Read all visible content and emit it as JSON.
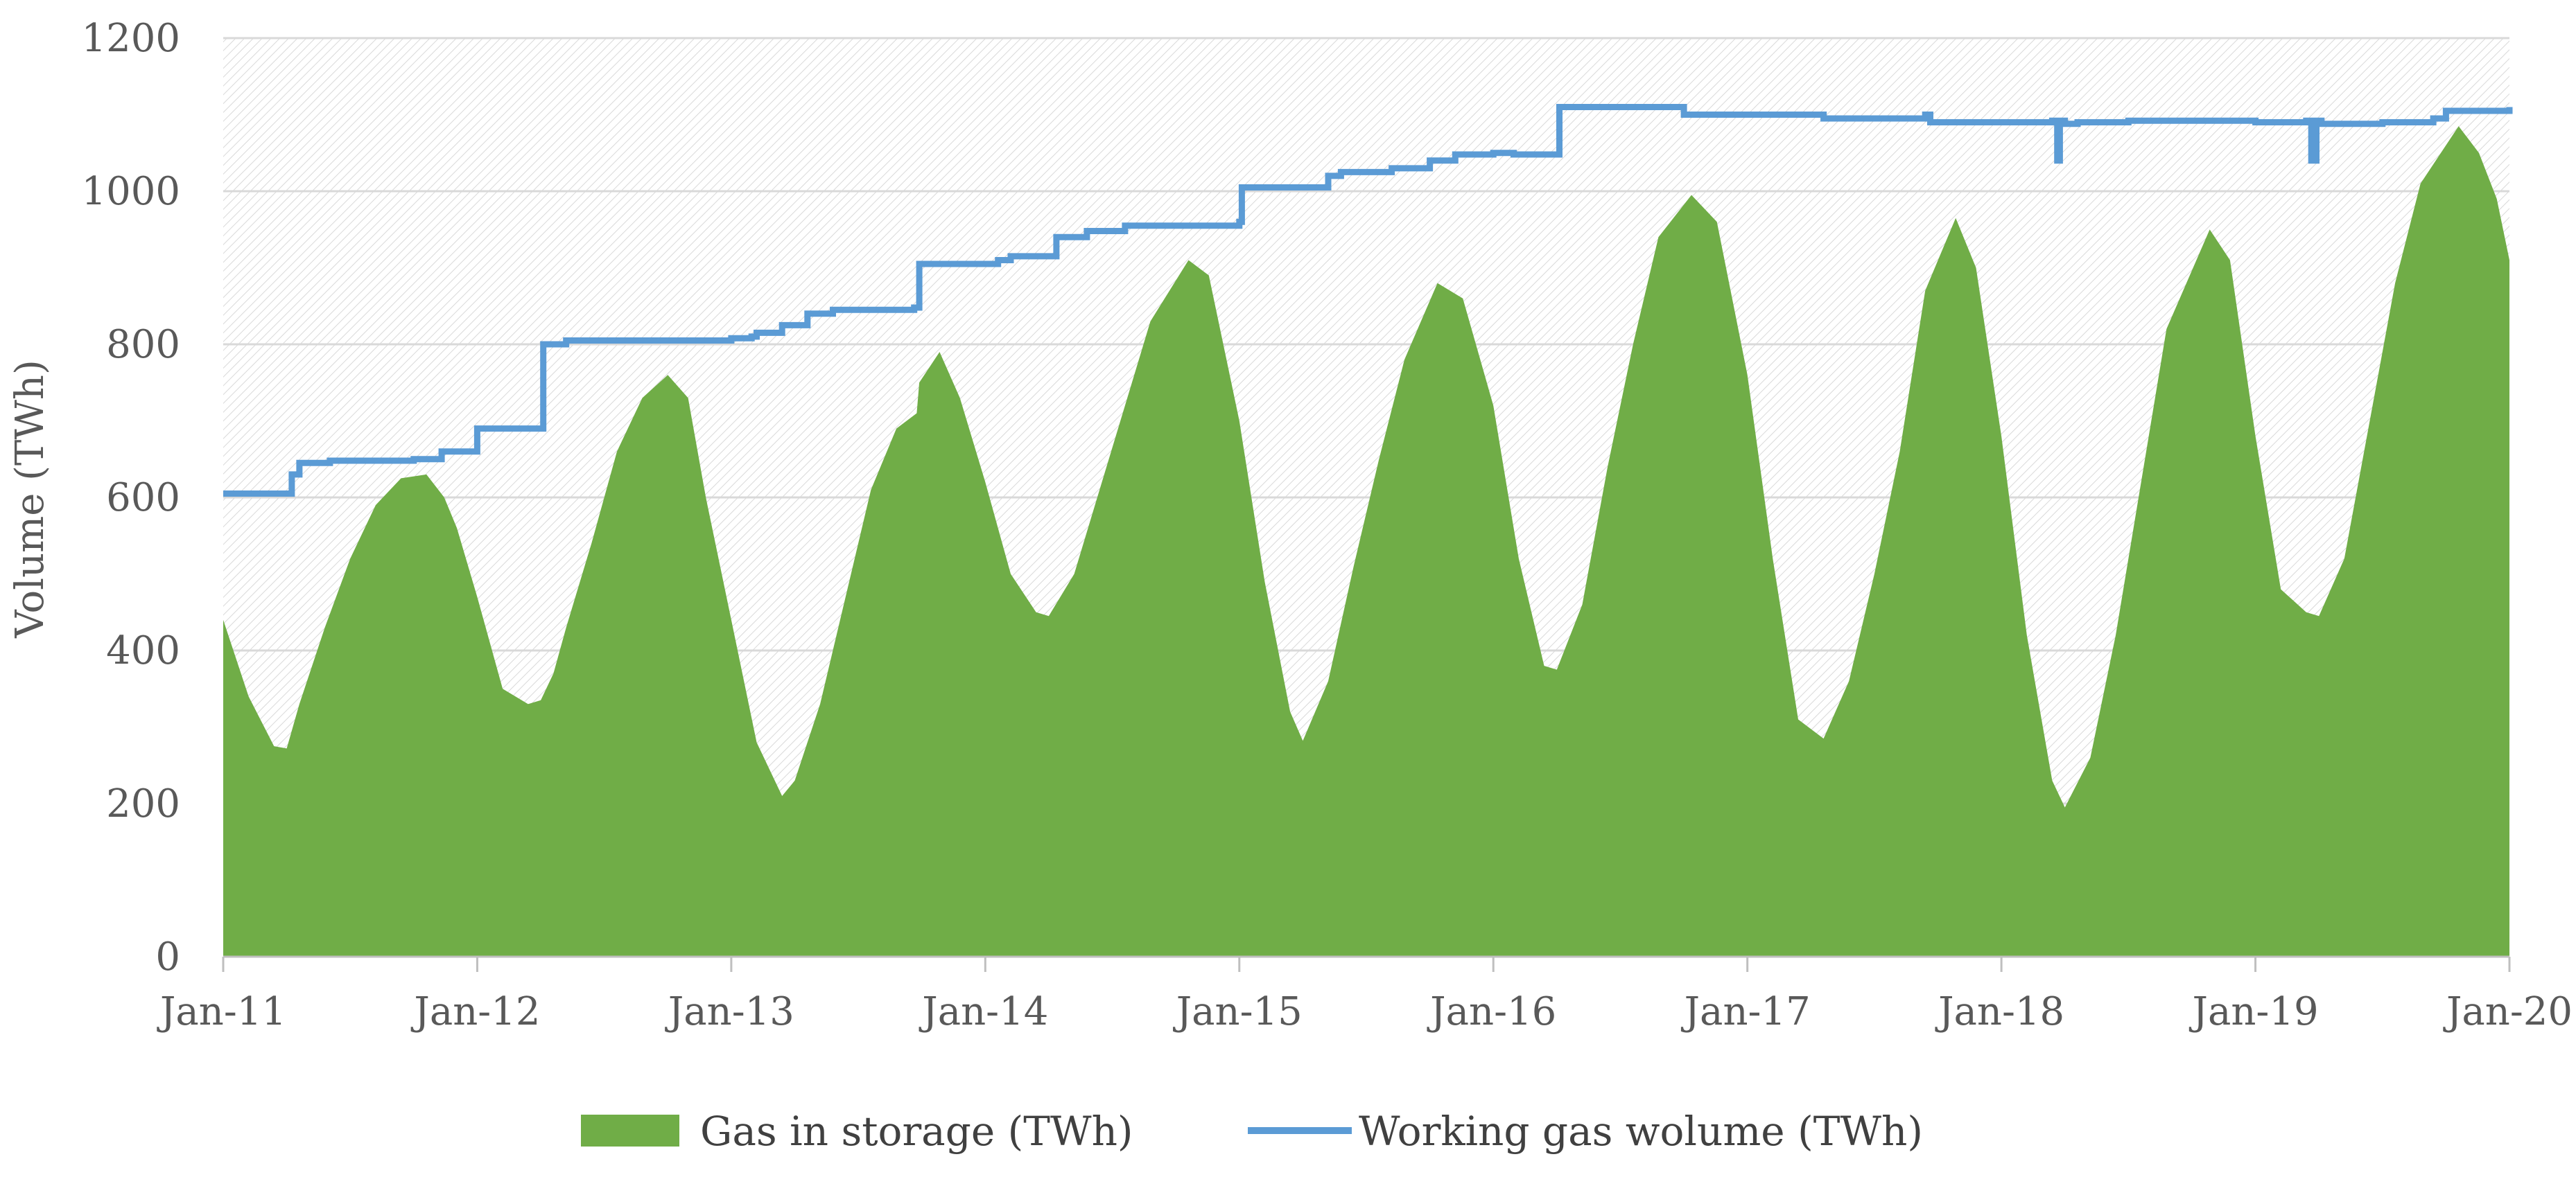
{
  "chart_data": {
    "type": "area",
    "title": "",
    "xlabel": "",
    "ylabel": "Volume (TWh)",
    "ylim": [
      0,
      1200
    ],
    "y_ticks": [
      "0",
      "200",
      "400",
      "600",
      "800",
      "1000",
      "1200"
    ],
    "x_range_years": [
      2011.0,
      2020.0
    ],
    "x_ticks": [
      "Jan-11",
      "Jan-12",
      "Jan-13",
      "Jan-14",
      "Jan-15",
      "Jan-16",
      "Jan-17",
      "Jan-18",
      "Jan-19",
      "Jan-20"
    ],
    "grid": true,
    "legend_position": "bottom",
    "series": [
      {
        "name": "Gas in storage (TWh)",
        "kind": "area",
        "color": "#70AD47",
        "x": [
          2011.0,
          2011.05,
          2011.1,
          2011.2,
          2011.25,
          2011.3,
          2011.4,
          2011.5,
          2011.6,
          2011.7,
          2011.8,
          2011.87,
          2011.92,
          2012.0,
          2012.1,
          2012.2,
          2012.25,
          2012.3,
          2012.35,
          2012.45,
          2012.55,
          2012.65,
          2012.75,
          2012.83,
          2012.9,
          2013.0,
          2013.1,
          2013.2,
          2013.25,
          2013.35,
          2013.45,
          2013.55,
          2013.65,
          2013.73,
          2013.74,
          2013.82,
          2013.9,
          2014.0,
          2014.1,
          2014.2,
          2014.25,
          2014.35,
          2014.45,
          2014.55,
          2014.65,
          2014.8,
          2014.88,
          2015.0,
          2015.1,
          2015.2,
          2015.25,
          2015.35,
          2015.45,
          2015.55,
          2015.65,
          2015.78,
          2015.88,
          2016.0,
          2016.1,
          2016.2,
          2016.25,
          2016.35,
          2016.45,
          2016.55,
          2016.65,
          2016.78,
          2016.88,
          2017.0,
          2017.1,
          2017.2,
          2017.3,
          2017.4,
          2017.5,
          2017.6,
          2017.7,
          2017.82,
          2017.9,
          2018.0,
          2018.1,
          2018.2,
          2018.25,
          2018.35,
          2018.45,
          2018.55,
          2018.65,
          2018.82,
          2018.9,
          2019.0,
          2019.1,
          2019.2,
          2019.25,
          2019.35,
          2019.45,
          2019.55,
          2019.65,
          2019.8,
          2019.88,
          2019.95,
          2020.0
        ],
        "values": [
          440,
          390,
          340,
          275,
          272,
          330,
          430,
          520,
          590,
          625,
          630,
          600,
          560,
          470,
          350,
          330,
          335,
          370,
          430,
          540,
          660,
          730,
          760,
          730,
          600,
          440,
          280,
          210,
          230,
          330,
          470,
          610,
          690,
          710,
          750,
          790,
          730,
          620,
          500,
          450,
          445,
          500,
          610,
          720,
          830,
          910,
          890,
          700,
          490,
          320,
          282,
          360,
          510,
          650,
          780,
          880,
          860,
          720,
          520,
          380,
          375,
          460,
          640,
          800,
          940,
          995,
          960,
          760,
          520,
          310,
          285,
          360,
          500,
          660,
          870,
          965,
          900,
          680,
          420,
          230,
          195,
          260,
          420,
          620,
          820,
          950,
          910,
          680,
          480,
          450,
          445,
          520,
          700,
          880,
          1010,
          1085,
          1050,
          990,
          910
        ]
      },
      {
        "name": "Working gas wolume (TWh)",
        "kind": "step-line",
        "color": "#5B9BD5",
        "x": [
          2011.0,
          2011.25,
          2011.27,
          2011.3,
          2011.42,
          2011.75,
          2011.85,
          2011.86,
          2011.98,
          2012.0,
          2012.25,
          2012.26,
          2012.35,
          2013.0,
          2013.08,
          2013.1,
          2013.2,
          2013.3,
          2013.4,
          2013.72,
          2013.74,
          2014.05,
          2014.1,
          2014.25,
          2014.28,
          2014.4,
          2014.55,
          2015.0,
          2015.01,
          2015.25,
          2015.35,
          2015.4,
          2015.6,
          2015.75,
          2015.85,
          2016.0,
          2016.08,
          2016.25,
          2016.26,
          2016.7,
          2016.75,
          2017.0,
          2017.3,
          2017.7,
          2017.72,
          2018.0,
          2018.05,
          2018.2,
          2018.22,
          2018.23,
          2018.25,
          2018.27,
          2018.3,
          2018.5,
          2019.0,
          2019.2,
          2019.22,
          2019.24,
          2019.26,
          2019.5,
          2019.7,
          2019.75,
          2020.0
        ],
        "values": [
          605,
          605,
          630,
          645,
          648,
          650,
          650,
          660,
          660,
          690,
          690,
          800,
          805,
          808,
          810,
          815,
          825,
          840,
          845,
          848,
          905,
          910,
          915,
          915,
          940,
          948,
          955,
          960,
          1005,
          1005,
          1020,
          1025,
          1030,
          1040,
          1048,
          1050,
          1048,
          1048,
          1110,
          1110,
          1100,
          1100,
          1095,
          1100,
          1090,
          1090,
          1090,
          1092,
          1040,
          1092,
          1088,
          1088,
          1090,
          1092,
          1090,
          1092,
          1040,
          1092,
          1088,
          1090,
          1095,
          1105,
          1110
        ]
      }
    ]
  }
}
